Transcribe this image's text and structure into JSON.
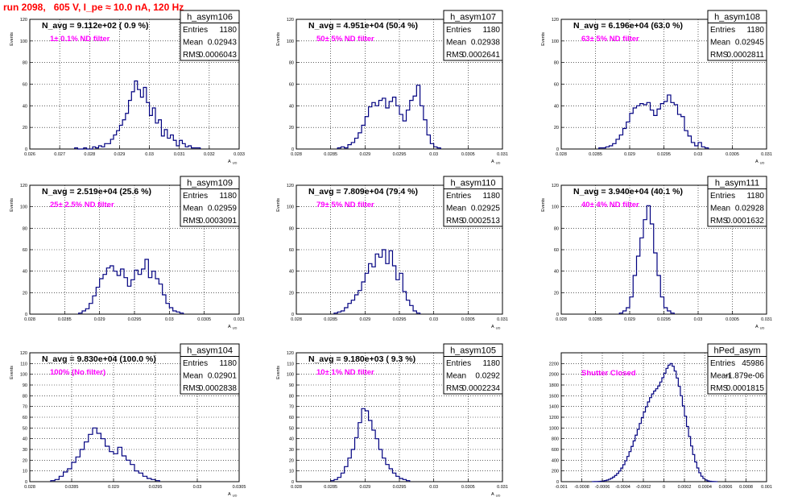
{
  "page_title": "run 2098,   605 V, I_pe ≈ 10.0 nA, 120 Hz",
  "stat_labels": {
    "entries": "Entries",
    "mean": "Mean",
    "rms": "RMS"
  },
  "colors": {
    "title": "#ff0000",
    "annotation": "#ff00ff",
    "histogram": "#000080",
    "grid": "#000000",
    "text": "#000000"
  },
  "chart_data": [
    {
      "type": "histogram",
      "name": "h_asym106",
      "title": "N_avg = 9.112e+02 ( 0.9 %)",
      "annotation": "1± 0.1% ND filter",
      "entries": "1180",
      "mean": "0.02943",
      "rms": "0.0006043",
      "xlabel": "A_UD",
      "ylabel": "Events",
      "xlim": [
        0.026,
        0.033
      ],
      "ylim": [
        0,
        120
      ],
      "xticks": [
        0.026,
        0.027,
        0.028,
        0.029,
        0.03,
        0.031,
        0.032,
        0.033
      ],
      "xtick_labels": [
        "0.026",
        "0.027",
        "0.028",
        "0.029",
        "0.03",
        "0.031",
        "0.032",
        "0.033"
      ],
      "yticks": [
        0,
        20,
        40,
        60,
        80,
        100,
        120
      ],
      "grid": true,
      "x_edges_start": 0.0275,
      "bin_width": 0.0001,
      "values": [
        1,
        0,
        0,
        1,
        0,
        0,
        2,
        1,
        3,
        2,
        5,
        5,
        9,
        13,
        17,
        22,
        27,
        33,
        45,
        53,
        63,
        55,
        48,
        57,
        43,
        31,
        38,
        24,
        27,
        12,
        18,
        10,
        13,
        8,
        3,
        8,
        5,
        2,
        3,
        1,
        1,
        1
      ]
    },
    {
      "type": "histogram",
      "name": "h_asym107",
      "title": "N_avg = 4.951e+04 (50.4 %)",
      "annotation": "50± 5% ND filter",
      "entries": "1180",
      "mean": "0.02938",
      "rms": "0.0002641",
      "xlabel": "A_UD",
      "ylabel": "Events",
      "xlim": [
        0.028,
        0.031
      ],
      "ylim": [
        0,
        120
      ],
      "xticks": [
        0.028,
        0.0285,
        0.029,
        0.0295,
        0.03,
        0.0305,
        0.031
      ],
      "xtick_labels": [
        "0.028",
        "0.0285",
        "0.029",
        "0.0295",
        "0.03",
        "0.0305",
        "0.031"
      ],
      "yticks": [
        0,
        20,
        40,
        60,
        80,
        100,
        120
      ],
      "grid": true,
      "x_edges_start": 0.0286,
      "bin_width": 5e-05,
      "values": [
        1,
        2,
        1,
        4,
        6,
        10,
        15,
        22,
        30,
        39,
        43,
        40,
        45,
        47,
        38,
        44,
        48,
        40,
        32,
        26,
        36,
        45,
        49,
        59,
        40,
        27,
        13,
        5,
        2,
        1
      ]
    },
    {
      "type": "histogram",
      "name": "h_asym108",
      "title": "N_avg = 6.196e+04 (63.0 %)",
      "annotation": "63± 5% ND filter",
      "entries": "1180",
      "mean": "0.02945",
      "rms": "0.0002811",
      "xlabel": "A_UD",
      "ylabel": "Events",
      "xlim": [
        0.028,
        0.031
      ],
      "ylim": [
        0,
        120
      ],
      "xticks": [
        0.028,
        0.0285,
        0.029,
        0.0295,
        0.03,
        0.0305,
        0.031
      ],
      "xtick_labels": [
        "0.028",
        "0.0285",
        "0.029",
        "0.0295",
        "0.03",
        "0.0305",
        "0.031"
      ],
      "yticks": [
        0,
        20,
        40,
        60,
        80,
        100,
        120
      ],
      "grid": true,
      "x_edges_start": 0.02855,
      "bin_width": 5e-05,
      "values": [
        1,
        1,
        2,
        3,
        5,
        9,
        13,
        19,
        25,
        33,
        38,
        40,
        42,
        41,
        43,
        36,
        31,
        37,
        42,
        44,
        50,
        43,
        41,
        32,
        30,
        17,
        12,
        6,
        3,
        6,
        2,
        1
      ]
    },
    {
      "type": "histogram",
      "name": "h_asym109",
      "title": "N_avg = 2.519e+04 (25.6 %)",
      "annotation": "25± 2.5% ND filter",
      "entries": "1180",
      "mean": "0.02959",
      "rms": "0.0003091",
      "xlabel": "A_UD",
      "ylabel": "Events",
      "xlim": [
        0.028,
        0.031
      ],
      "ylim": [
        0,
        120
      ],
      "xticks": [
        0.028,
        0.0285,
        0.029,
        0.0295,
        0.03,
        0.0305,
        0.031
      ],
      "xtick_labels": [
        "0.028",
        "0.0285",
        "0.029",
        "0.0295",
        "0.03",
        "0.0305",
        "0.031"
      ],
      "yticks": [
        0,
        20,
        40,
        60,
        80,
        100,
        120
      ],
      "grid": true,
      "x_edges_start": 0.0287,
      "bin_width": 5e-05,
      "values": [
        1,
        3,
        5,
        10,
        17,
        25,
        33,
        37,
        43,
        45,
        40,
        36,
        42,
        34,
        26,
        32,
        41,
        37,
        42,
        51,
        34,
        40,
        33,
        28,
        18,
        10,
        6,
        3,
        2,
        1
      ]
    },
    {
      "type": "histogram",
      "name": "h_asym110",
      "title": "N_avg = 7.809e+04 (79.4 %)",
      "annotation": "79± 5% ND filter",
      "entries": "1180",
      "mean": "0.02925",
      "rms": "0.0002513",
      "xlabel": "A_UD",
      "ylabel": "Events",
      "xlim": [
        0.028,
        0.031
      ],
      "ylim": [
        0,
        120
      ],
      "xticks": [
        0.028,
        0.0285,
        0.029,
        0.0295,
        0.03,
        0.0305,
        0.031
      ],
      "xtick_labels": [
        "0.028",
        "0.0285",
        "0.029",
        "0.0295",
        "0.03",
        "0.0305",
        "0.031"
      ],
      "yticks": [
        0,
        20,
        40,
        60,
        80,
        100,
        120
      ],
      "grid": true,
      "x_edges_start": 0.02855,
      "bin_width": 5e-05,
      "values": [
        1,
        2,
        3,
        6,
        10,
        13,
        18,
        22,
        30,
        38,
        47,
        44,
        56,
        53,
        60,
        47,
        59,
        45,
        32,
        38,
        21,
        13,
        8,
        3,
        1
      ]
    },
    {
      "type": "histogram",
      "name": "h_asym111",
      "title": "N_avg = 3.940e+04 (40.1 %)",
      "annotation": "40± 4% ND filter",
      "entries": "1180",
      "mean": "0.02928",
      "rms": "0.0001632",
      "xlabel": "A_UD",
      "ylabel": "Events",
      "xlim": [
        0.028,
        0.031
      ],
      "ylim": [
        0,
        120
      ],
      "xticks": [
        0.028,
        0.0285,
        0.029,
        0.0295,
        0.03,
        0.0305,
        0.031
      ],
      "xtick_labels": [
        "0.028",
        "0.0285",
        "0.029",
        "0.0295",
        "0.03",
        "0.0305",
        "0.031"
      ],
      "yticks": [
        0,
        20,
        40,
        60,
        80,
        100,
        120
      ],
      "grid": true,
      "x_edges_start": 0.02885,
      "bin_width": 5e-05,
      "values": [
        1,
        3,
        6,
        16,
        36,
        54,
        71,
        88,
        101,
        84,
        57,
        36,
        16,
        6,
        3,
        1
      ]
    },
    {
      "type": "histogram",
      "name": "h_asym104",
      "title": "N_avg = 9.830e+04 (100.0 %)",
      "annotation": "100% (No filter)",
      "entries": "1180",
      "mean": "0.02901",
      "rms": "0.0002838",
      "xlabel": "A_UD",
      "ylabel": "Events",
      "xlim": [
        0.028,
        0.0305
      ],
      "ylim": [
        0,
        120
      ],
      "xticks": [
        0.028,
        0.0285,
        0.029,
        0.0295,
        0.03,
        0.0305
      ],
      "xtick_labels": [
        "0.028",
        "0.0285",
        "0.029",
        "0.0295",
        "0.03",
        "0.0305"
      ],
      "yticks": [
        0,
        10,
        20,
        30,
        40,
        50,
        60,
        70,
        80,
        90,
        100,
        110,
        120
      ],
      "grid": true,
      "x_edges_start": 0.02825,
      "bin_width": 5e-05,
      "values": [
        1,
        2,
        5,
        9,
        12,
        18,
        23,
        30,
        37,
        44,
        50,
        45,
        40,
        33,
        28,
        26,
        32,
        24,
        20,
        16,
        10,
        8,
        5,
        3,
        2,
        1
      ]
    },
    {
      "type": "histogram",
      "name": "h_asym105",
      "title": "N_avg = 9.180e+03 ( 9.3 %)",
      "annotation": "10± 1% ND filter",
      "entries": "1180",
      "mean": "0.0292",
      "rms": "0.0002234",
      "xlabel": "A_UD",
      "ylabel": "Events",
      "xlim": [
        0.028,
        0.031
      ],
      "ylim": [
        0,
        120
      ],
      "xticks": [
        0.028,
        0.0285,
        0.029,
        0.0295,
        0.03,
        0.0305,
        0.031
      ],
      "xtick_labels": [
        "0.028",
        "0.0285",
        "0.029",
        "0.0295",
        "0.03",
        "0.0305",
        "0.031"
      ],
      "yticks": [
        0,
        10,
        20,
        30,
        40,
        50,
        60,
        70,
        80,
        90,
        100,
        110,
        120
      ],
      "grid": true,
      "x_edges_start": 0.0285,
      "bin_width": 5e-05,
      "values": [
        1,
        2,
        4,
        8,
        14,
        22,
        30,
        41,
        55,
        68,
        66,
        57,
        48,
        40,
        30,
        22,
        16,
        12,
        8,
        5,
        3,
        2,
        1
      ]
    },
    {
      "type": "histogram",
      "name": "hPed_asym",
      "title": "",
      "annotation": "Shutter Closed",
      "entries": "45986",
      "mean": "-1.879e-06",
      "rms": "0.0001815",
      "xlabel": "",
      "ylabel": "",
      "xlim": [
        -0.001,
        0.001
      ],
      "ylim": [
        0,
        2400
      ],
      "xticks": [
        -0.001,
        -0.0008,
        -0.0006,
        -0.0004,
        -0.0002,
        0,
        0.0002,
        0.0004,
        0.0006,
        0.0008,
        0.001
      ],
      "xtick_labels": [
        "-0.001",
        "-0.0008",
        "-0.0006",
        "-0.0004",
        "-0.0002",
        "0",
        "0.0002",
        "0.0004",
        "0.0006",
        "0.0008",
        "0.001"
      ],
      "yticks": [
        0,
        200,
        400,
        600,
        800,
        1000,
        1200,
        1400,
        1600,
        1800,
        2000,
        2200
      ],
      "grid": true,
      "x_edges_start": -0.0007,
      "bin_width": 2e-05,
      "values": [
        1,
        2,
        3,
        5,
        8,
        13,
        20,
        30,
        44,
        62,
        86,
        116,
        153,
        199,
        253,
        316,
        389,
        470,
        560,
        656,
        759,
        866,
        975,
        1085,
        1193,
        1297,
        1395,
        1485,
        1565,
        1633,
        1688,
        1730,
        1782,
        1855,
        1935,
        2020,
        2110,
        2170,
        2200,
        2150,
        2060,
        1930,
        1775,
        1600,
        1412,
        1220,
        1027,
        840,
        665,
        505,
        368,
        255,
        166,
        102,
        59,
        32,
        16,
        8,
        4,
        2,
        1
      ]
    }
  ]
}
